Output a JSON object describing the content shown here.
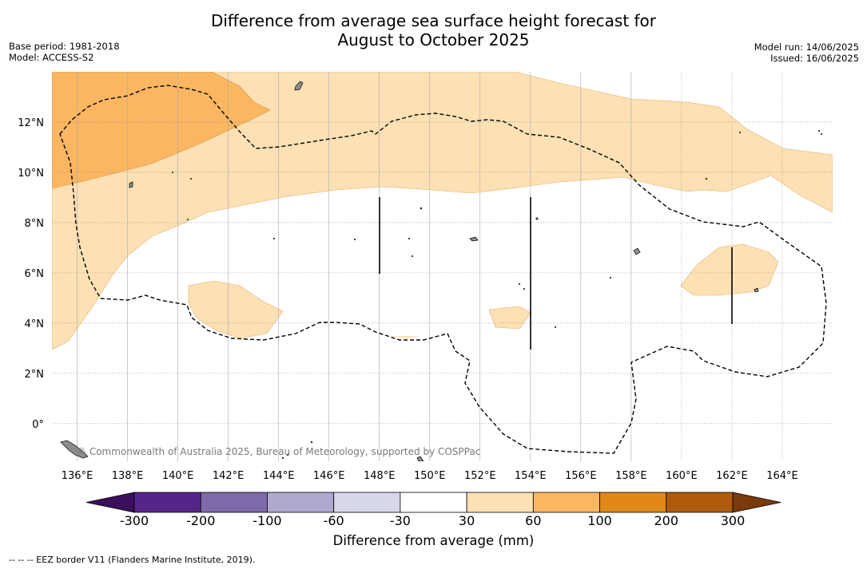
{
  "header": {
    "title_line1": "Difference from average sea surface height forecast for",
    "title_line2": "August to October 2025",
    "base_period": "Base period: 1981-2018",
    "model": "Model: ACCESS-S2",
    "model_run": "Model run: 14/06/2025",
    "issued": "Issued: 16/06/2025"
  },
  "map": {
    "lon_range": [
      135,
      166
    ],
    "lat_range": [
      -1.5,
      14
    ],
    "x_ticks": [
      "136°E",
      "138°E",
      "140°E",
      "142°E",
      "144°E",
      "146°E",
      "148°E",
      "150°E",
      "152°E",
      "154°E",
      "156°E",
      "158°E",
      "160°E",
      "162°E",
      "164°E"
    ],
    "y_ticks": [
      "12°N",
      "10°N",
      "8°N",
      "6°N",
      "4°N",
      "2°N",
      "0°"
    ],
    "credit": "© Commonwealth of Australia 2025, Bureau of Meteorology, supported by COSPPac",
    "colors": {
      "fill_30_60": "#fde0b3",
      "fill_60_100": "#fbb662",
      "land": "#8c8c8c"
    }
  },
  "colorbar": {
    "labels": [
      "-300",
      "-200",
      "-100",
      "-60",
      "-30",
      "30",
      "60",
      "100",
      "200",
      "300"
    ],
    "colors": [
      "#3b0f5c",
      "#55268a",
      "#7d6aab",
      "#b0a8d0",
      "#d7d7ea",
      "#ffffff",
      "#fde0b3",
      "#fbb662",
      "#e08818",
      "#b05a0d",
      "#7a3a0b"
    ],
    "title": "Difference from average (mm)"
  },
  "footnote": "--  --  -- EEZ border V11 (Flanders Marine Institute, 2019)."
}
